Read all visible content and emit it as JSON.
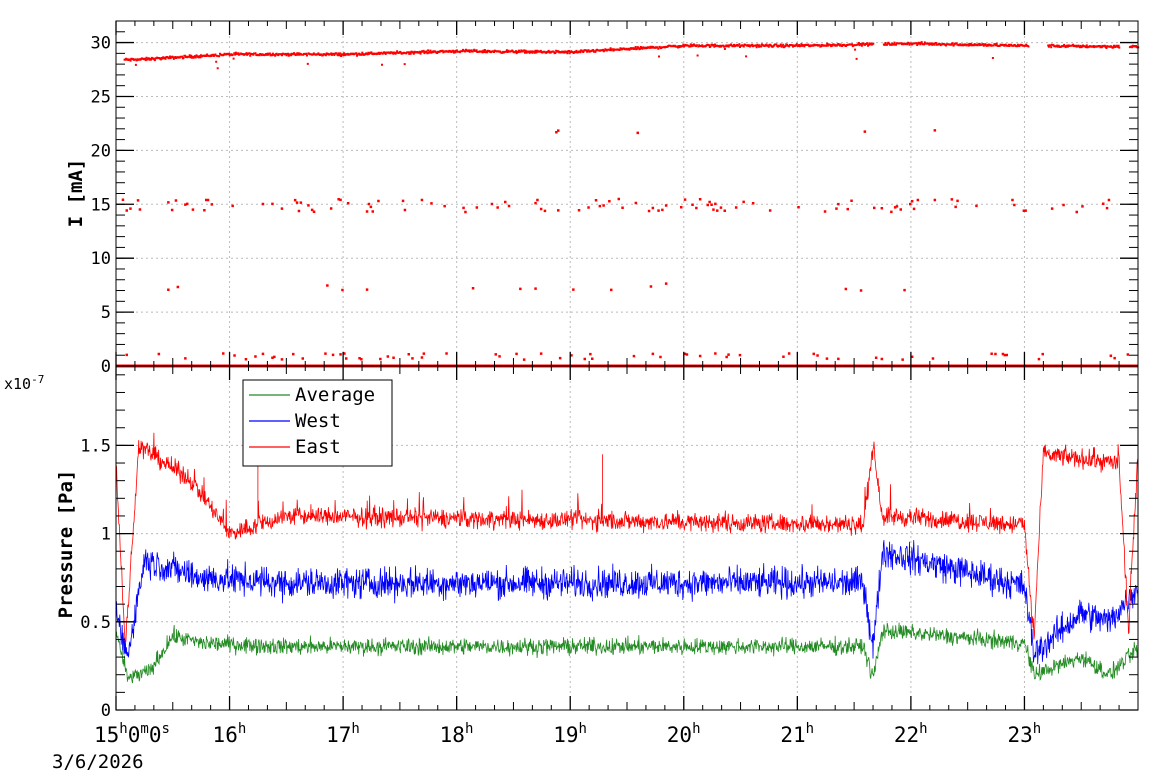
{
  "colors": {
    "average": "#228b22",
    "west": "#0000ff",
    "east": "#ff0000",
    "grid": "#bbbbbb",
    "axis": "#000000"
  },
  "time_axis": {
    "ticks": [
      {
        "hour": 15,
        "label": "15",
        "suffix": "0",
        "suffix2": "0"
      },
      {
        "hour": 16,
        "label": "16"
      },
      {
        "hour": 17,
        "label": "17"
      },
      {
        "hour": 18,
        "label": "18"
      },
      {
        "hour": 19,
        "label": "19"
      },
      {
        "hour": 20,
        "label": "20"
      },
      {
        "hour": 21,
        "label": "21"
      },
      {
        "hour": 22,
        "label": "22"
      },
      {
        "hour": 23,
        "label": "23"
      }
    ],
    "hour_unit": "h",
    "minute_unit": "m",
    "second_unit": "s",
    "date": "3/6/2026"
  },
  "chart_data": [
    {
      "type": "scatter",
      "ylabel": "I [mA]",
      "xlim": [
        "15:00",
        "24:00"
      ],
      "ylim": [
        0,
        32
      ],
      "yticks": [
        "0",
        "5",
        "10",
        "15",
        "20",
        "25",
        "30"
      ],
      "grid": true,
      "series": [
        {
          "color": "#ff0000",
          "bands": [
            {
              "level": 0,
              "dense": true
            },
            {
              "level": 29.5,
              "dense": true
            },
            {
              "level": 15,
              "dense": false
            },
            {
              "level": 1,
              "dense": false
            },
            {
              "level": 7.5,
              "dense": false
            },
            {
              "level": 21.5,
              "dense": false
            }
          ],
          "main_trend": [
            {
              "t": "15:10",
              "v": 28.5
            },
            {
              "t": "16:00",
              "v": 29.0
            },
            {
              "t": "17:00",
              "v": 29.0
            },
            {
              "t": "18:00",
              "v": 29.3
            },
            {
              "t": "19:00",
              "v": 29.2
            },
            {
              "t": "20:00",
              "v": 29.8
            },
            {
              "t": "21:00",
              "v": 29.8
            },
            {
              "t": "22:00",
              "v": 30.0
            },
            {
              "t": "23:00",
              "v": 29.8
            },
            {
              "t": "24:00",
              "v": 29.7
            }
          ],
          "gaps": [
            [
              "21:40",
              "21:45"
            ],
            [
              "23:02",
              "23:12"
            ],
            [
              "23:50",
              "23:55"
            ]
          ]
        }
      ]
    },
    {
      "type": "line",
      "ylabel": "Pressure [Pa]",
      "ylabel_exponent": "x10",
      "ylabel_exponent_power": "-7",
      "xlim": [
        "15:00",
        "24:00"
      ],
      "ylim": [
        0,
        1.95
      ],
      "yticks": [
        "0",
        "0.5",
        "1",
        "1.5"
      ],
      "grid": true,
      "legend_position": "top-left",
      "series": [
        {
          "name": "Average",
          "color": "#228b22",
          "baseline": 0.36,
          "noise": 0.07,
          "profile": [
            {
              "t": "15:00",
              "v": 0.45
            },
            {
              "t": "15:06",
              "v": 0.18
            },
            {
              "t": "15:18",
              "v": 0.22
            },
            {
              "t": "15:30",
              "v": 0.42
            },
            {
              "t": "15:45",
              "v": 0.38
            },
            {
              "t": "16:30",
              "v": 0.36
            },
            {
              "t": "21:35",
              "v": 0.36
            },
            {
              "t": "21:40",
              "v": 0.18
            },
            {
              "t": "21:45",
              "v": 0.45
            },
            {
              "t": "23:00",
              "v": 0.38
            },
            {
              "t": "23:05",
              "v": 0.2
            },
            {
              "t": "23:30",
              "v": 0.3
            },
            {
              "t": "23:45",
              "v": 0.2
            },
            {
              "t": "24:00",
              "v": 0.35
            }
          ]
        },
        {
          "name": "West",
          "color": "#0000ff",
          "baseline": 0.72,
          "noise": 0.13,
          "profile": [
            {
              "t": "15:00",
              "v": 0.55
            },
            {
              "t": "15:06",
              "v": 0.3
            },
            {
              "t": "15:15",
              "v": 0.85
            },
            {
              "t": "15:45",
              "v": 0.75
            },
            {
              "t": "16:30",
              "v": 0.72
            },
            {
              "t": "21:35",
              "v": 0.72
            },
            {
              "t": "21:40",
              "v": 0.35
            },
            {
              "t": "21:45",
              "v": 0.9
            },
            {
              "t": "23:00",
              "v": 0.7
            },
            {
              "t": "23:05",
              "v": 0.32
            },
            {
              "t": "23:30",
              "v": 0.55
            },
            {
              "t": "23:45",
              "v": 0.5
            },
            {
              "t": "24:00",
              "v": 0.7
            }
          ]
        },
        {
          "name": "East",
          "color": "#ff0000",
          "baseline": 1.08,
          "noise": 0.08,
          "profile": [
            {
              "t": "15:00",
              "v": 1.4
            },
            {
              "t": "15:05",
              "v": 0.35
            },
            {
              "t": "15:12",
              "v": 1.5
            },
            {
              "t": "15:40",
              "v": 1.3
            },
            {
              "t": "16:00",
              "v": 1.0
            },
            {
              "t": "16:30",
              "v": 1.1
            },
            {
              "t": "21:35",
              "v": 1.05
            },
            {
              "t": "21:40",
              "v": 1.5
            },
            {
              "t": "21:45",
              "v": 1.1
            },
            {
              "t": "23:00",
              "v": 1.05
            },
            {
              "t": "23:05",
              "v": 0.4
            },
            {
              "t": "23:10",
              "v": 1.45
            },
            {
              "t": "23:50",
              "v": 1.4
            },
            {
              "t": "23:55",
              "v": 0.45
            },
            {
              "t": "24:00",
              "v": 1.45
            }
          ],
          "spikes": [
            {
              "t": "19:17",
              "v": 1.45
            },
            {
              "t": "16:15",
              "v": 1.4
            }
          ]
        }
      ]
    }
  ]
}
